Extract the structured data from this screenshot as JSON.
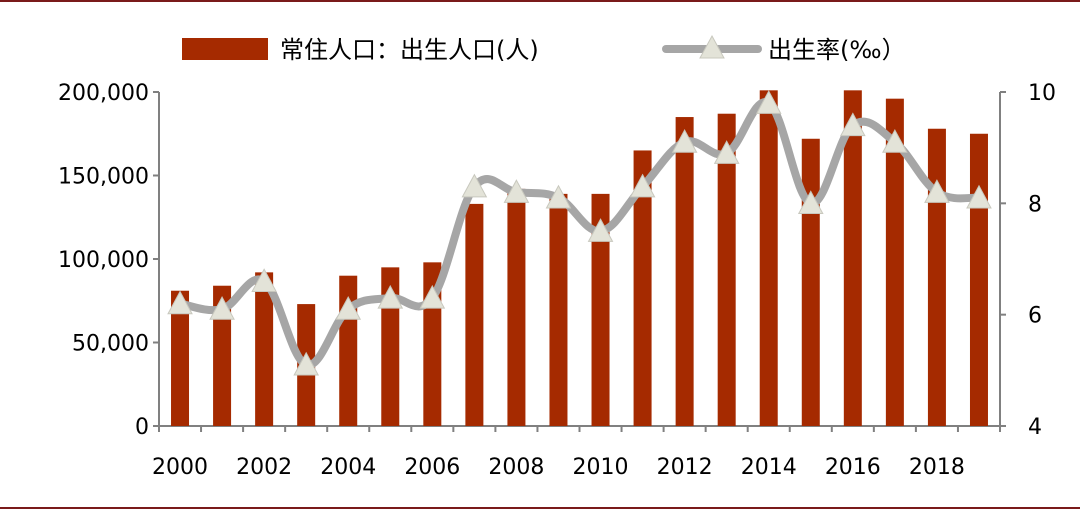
{
  "chart_data": {
    "type": "bar",
    "categories": [
      "2000",
      "2001",
      "2002",
      "2003",
      "2004",
      "2005",
      "2006",
      "2007",
      "2008",
      "2009",
      "2010",
      "2011",
      "2012",
      "2013",
      "2014",
      "2015",
      "2016",
      "2017",
      "2018",
      "2019"
    ],
    "x_tick_labels": [
      "2000",
      "2002",
      "2004",
      "2006",
      "2008",
      "2010",
      "2012",
      "2014",
      "2016",
      "2018"
    ],
    "series": [
      {
        "name": "常住人口：出生人口(人)",
        "type": "bar",
        "axis": "left",
        "color": "#a52a00",
        "values": [
          81000,
          84000,
          92000,
          73000,
          90000,
          95000,
          98000,
          133000,
          142000,
          139000,
          139000,
          165000,
          185000,
          187000,
          201000,
          172000,
          201000,
          196000,
          178000,
          175000
        ]
      },
      {
        "name": "出生率(‰）",
        "type": "line",
        "axis": "right",
        "color": "#a6a6a6",
        "marker_color": "#e3e3d8",
        "values": [
          6.2,
          6.1,
          6.6,
          5.1,
          6.1,
          6.3,
          6.3,
          8.3,
          8.2,
          8.1,
          7.5,
          8.3,
          9.1,
          8.9,
          9.8,
          8.0,
          9.4,
          9.1,
          8.2,
          8.1
        ]
      }
    ],
    "y_left": {
      "ylim": [
        0,
        200000
      ],
      "ticks": [
        0,
        50000,
        100000,
        150000,
        200000
      ],
      "tick_labels": [
        "0",
        "50,000",
        "100,000",
        "150,000",
        "200,000"
      ]
    },
    "y_right": {
      "ylim": [
        4,
        10
      ],
      "ticks": [
        4,
        6,
        8,
        10
      ],
      "tick_labels": [
        "4",
        "6",
        "8",
        "10"
      ]
    },
    "title": "",
    "xlabel": "",
    "ylabel": "",
    "grid": false,
    "legend": "top-center"
  }
}
